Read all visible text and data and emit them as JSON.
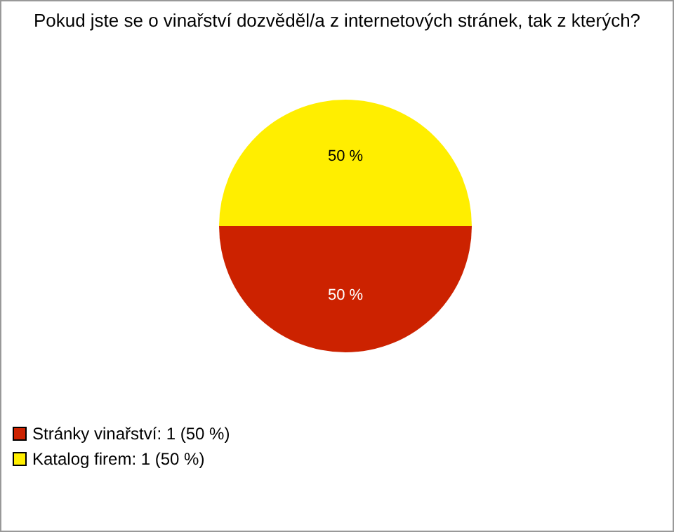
{
  "chart_data": {
    "type": "pie",
    "title": "Pokud jste se o vinařství dozvěděl/a z internetových stránek, tak z kterých?",
    "categories": [
      "Stránky vinařství: 1 (50 %)",
      "Katalog firem: 1 (50 %)"
    ],
    "values": [
      50,
      50
    ],
    "colors": [
      "#cc2200",
      "#ffee00"
    ],
    "value_labels": [
      "50 %",
      "50 %"
    ],
    "legend": "bottom"
  }
}
